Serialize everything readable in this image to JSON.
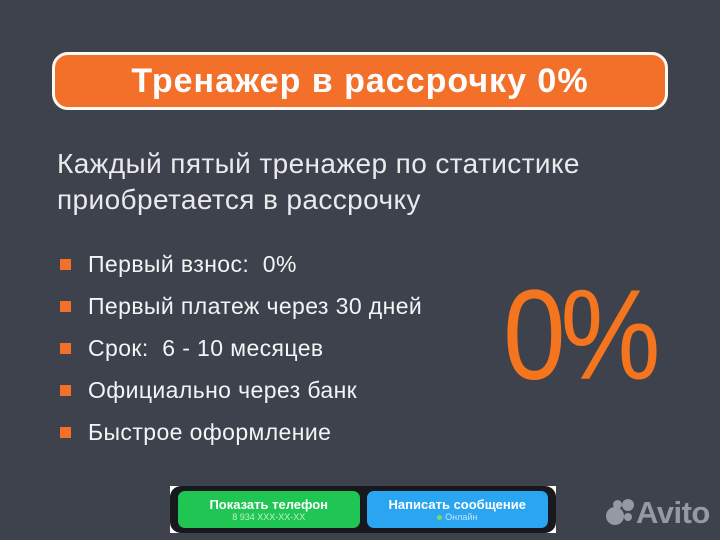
{
  "colors": {
    "background": "#3d424d",
    "accent_orange": "#f3702a",
    "highlight_orange": "#f5741e",
    "banner_border": "#fcf9f4",
    "cta_bar_background": "#17191e",
    "phone_button_green": "#1fc653",
    "message_button_blue": "#2aa5f2",
    "online_dot_green": "#7ed957",
    "logo_gray": "#9599a2",
    "text_light": "#e9eaec"
  },
  "banner": {
    "title": "Тренажер в рассрочку 0%"
  },
  "headline": {
    "text": "Каждый пятый тренажер по статистике\nприобретается в рассрочку"
  },
  "bullets": {
    "items": [
      {
        "label": "Первый взнос:  0%"
      },
      {
        "label": "Первый платеж через 30 дней"
      },
      {
        "label": "Срок:  6 - 10 месяцев"
      },
      {
        "label": "Официально через банк"
      },
      {
        "label": "Быстрое оформление"
      }
    ]
  },
  "highlight": {
    "value": "0%"
  },
  "cta": {
    "phone_button": {
      "label": "Показать телефон",
      "sub": "8 934 XXX-XX-XX"
    },
    "message_button": {
      "label": "Написать сообщение",
      "sub": "Онлайн"
    }
  },
  "footer": {
    "brand": "Avito"
  }
}
